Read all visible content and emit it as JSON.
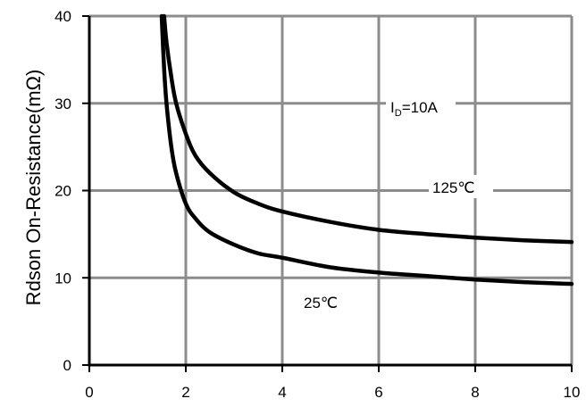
{
  "chart_data": {
    "type": "line",
    "title": "",
    "xlabel": "",
    "ylabel": "Rdson On-Resistance(mΩ)",
    "xlim": [
      0,
      10
    ],
    "ylim": [
      0,
      40
    ],
    "grid": true,
    "x_ticks": [
      "0",
      "2",
      "4",
      "6",
      "8",
      "10"
    ],
    "y_ticks": [
      "0",
      "10",
      "20",
      "30",
      "40"
    ],
    "annotations": {
      "current_main": "I",
      "current_sub": "D",
      "current_value": "=10A"
    },
    "series": [
      {
        "name": "125℃",
        "color": "#000000",
        "x": [
          1.55,
          1.6,
          1.7,
          1.8,
          2.0,
          2.2,
          2.5,
          3.0,
          3.5,
          4.0,
          5.0,
          6.0,
          7.0,
          8.0,
          9.0,
          10.0
        ],
        "y": [
          40,
          37,
          33,
          30,
          26.5,
          24,
          22,
          19.8,
          18.5,
          17.6,
          16.4,
          15.5,
          15.0,
          14.6,
          14.3,
          14.1
        ]
      },
      {
        "name": "25℃",
        "color": "#000000",
        "x": [
          1.5,
          1.55,
          1.6,
          1.7,
          1.8,
          2.0,
          2.2,
          2.5,
          3.0,
          3.5,
          4.0,
          5.0,
          6.0,
          7.0,
          8.0,
          9.0,
          10.0
        ],
        "y": [
          40,
          34,
          30,
          25,
          22,
          18.5,
          16.8,
          15.2,
          13.8,
          12.8,
          12.3,
          11.2,
          10.6,
          10.2,
          9.8,
          9.5,
          9.3
        ]
      }
    ]
  }
}
